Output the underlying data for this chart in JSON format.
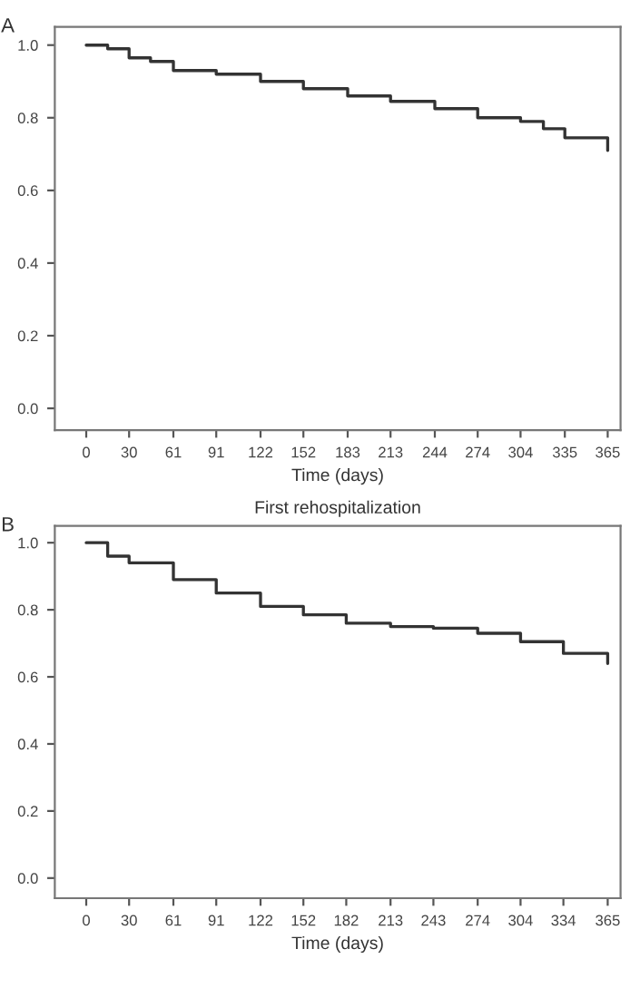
{
  "chart_data": [
    {
      "type": "step",
      "xlabel": "Time (days)",
      "annotations": [
        "A"
      ],
      "x": [
        0,
        15,
        30,
        45,
        61,
        91,
        122,
        152,
        183,
        213,
        244,
        274,
        304,
        320,
        335,
        365
      ],
      "series": [
        {
          "color": "#333333",
          "values": [
            1.0,
            0.99,
            0.965,
            0.955,
            0.93,
            0.92,
            0.9,
            0.88,
            0.86,
            0.845,
            0.825,
            0.8,
            0.79,
            0.77,
            0.745,
            0.71
          ]
        }
      ],
      "xlim": [
        -22,
        374
      ],
      "ylim": [
        -0.06,
        1.05
      ],
      "xticks": [
        0,
        30,
        61,
        91,
        122,
        152,
        183,
        213,
        244,
        274,
        304,
        335,
        365
      ],
      "yticks": [
        {
          "value": 0,
          "label": "0.0"
        },
        {
          "value": 0.2,
          "label": "0.2"
        },
        {
          "value": 0.4,
          "label": "0.4"
        },
        {
          "value": 0.6,
          "label": "0.6"
        },
        {
          "value": 0.8,
          "label": "0.8"
        },
        {
          "value": 1,
          "label": "1.0"
        }
      ]
    },
    {
      "type": "step",
      "title": "First rehospitalization",
      "xlabel": "Time (days)",
      "annotations": [
        "B"
      ],
      "x": [
        0,
        15,
        30,
        61,
        91,
        122,
        152,
        182,
        213,
        243,
        274,
        304,
        334,
        365
      ],
      "series": [
        {
          "color": "#333333",
          "values": [
            1.0,
            0.96,
            0.94,
            0.89,
            0.85,
            0.81,
            0.785,
            0.76,
            0.75,
            0.745,
            0.73,
            0.705,
            0.67,
            0.64
          ]
        }
      ],
      "xlim": [
        -22,
        374
      ],
      "ylim": [
        -0.06,
        1.05
      ],
      "xticks": [
        0,
        30,
        61,
        91,
        122,
        152,
        182,
        213,
        243,
        274,
        304,
        334,
        365
      ],
      "yticks": [
        {
          "value": 0,
          "label": "0.0"
        },
        {
          "value": 0.2,
          "label": "0.2"
        },
        {
          "value": 0.4,
          "label": "0.4"
        },
        {
          "value": 0.6,
          "label": "0.6"
        },
        {
          "value": 0.8,
          "label": "0.8"
        },
        {
          "value": 1,
          "label": "1.0"
        }
      ]
    }
  ]
}
